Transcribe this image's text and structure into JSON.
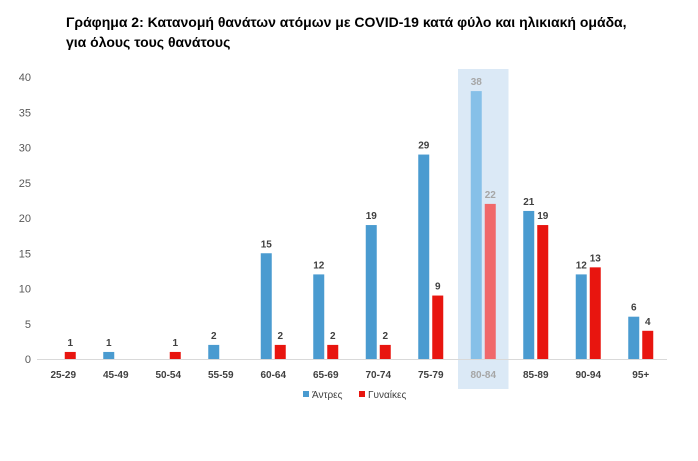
{
  "title": "Γράφημα 2: Κατανομή θανάτων ατόμων με COVID-19 κατά φύλο και ηλικιακή ομάδα, για όλους τους θανάτους",
  "chart_data": {
    "type": "bar",
    "categories": [
      "25-29",
      "45-49",
      "50-54",
      "55-59",
      "60-64",
      "65-69",
      "70-74",
      "75-79",
      "80-84",
      "85-89",
      "90-94",
      "95+"
    ],
    "series": [
      {
        "name": "Άντρες",
        "color": "#4a9bd0",
        "values": [
          0,
          1,
          0,
          2,
          15,
          12,
          19,
          29,
          38,
          21,
          12,
          6
        ]
      },
      {
        "name": "Γυναίκες",
        "color": "#e8150f",
        "values": [
          1,
          0,
          1,
          0,
          2,
          2,
          2,
          9,
          22,
          19,
          13,
          4
        ]
      }
    ],
    "labels": {
      "Άντρες": [
        "",
        "1",
        "",
        "2",
        "15",
        "12",
        "19",
        "29",
        "38",
        "21",
        "12",
        "6"
      ],
      "Γυναίκες": [
        "1",
        "",
        "1",
        "",
        "2",
        "2",
        "2",
        "9",
        "22",
        "19",
        "13",
        "4"
      ]
    },
    "highlight": {
      "category": "80-84",
      "color": "#dbe9f6",
      "male_color": "#86c0e8",
      "female_color": "#f0686a",
      "label_color": "#a6a6a6"
    },
    "yticks": [
      0,
      5,
      10,
      15,
      20,
      25,
      30,
      35,
      40
    ],
    "ylim": [
      0,
      40
    ],
    "grid": false,
    "legend_position": "bottom"
  }
}
